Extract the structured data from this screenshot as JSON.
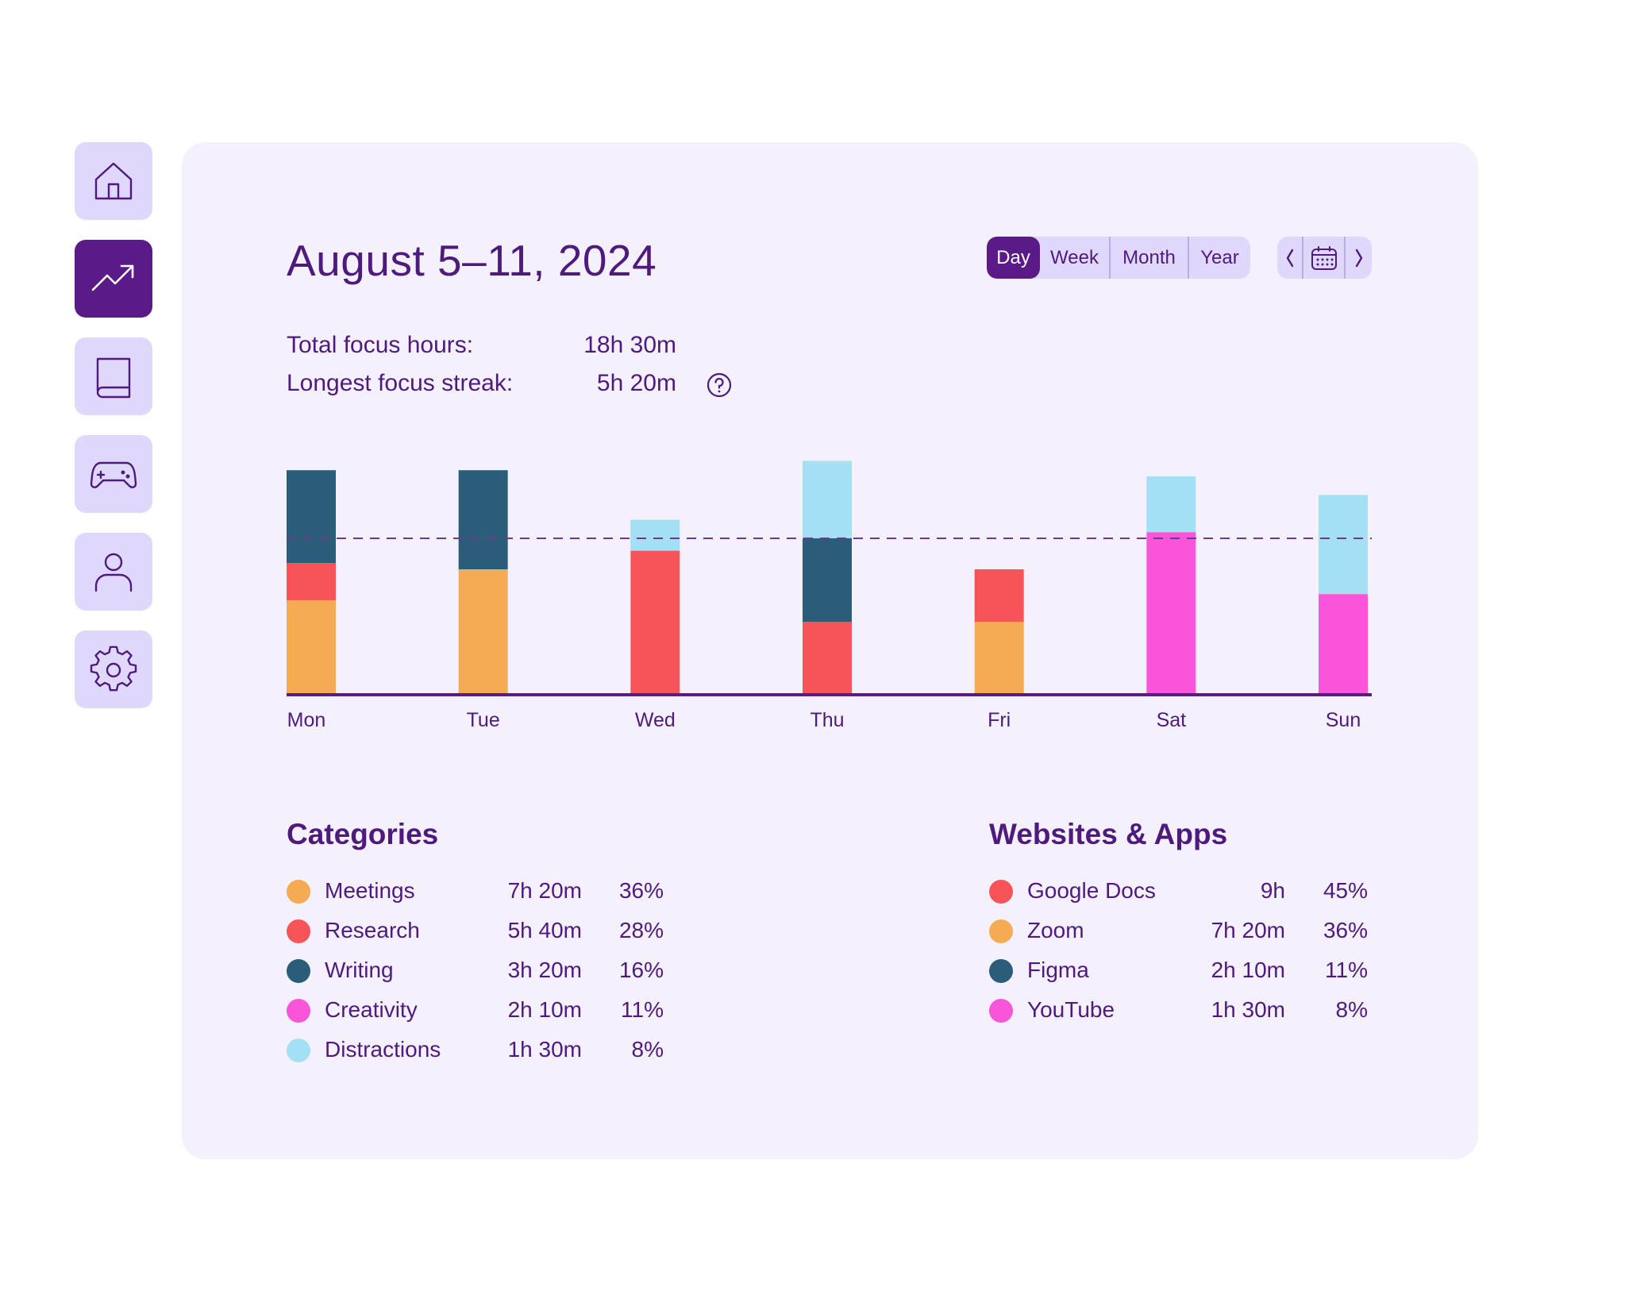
{
  "sidebar": {
    "items": [
      {
        "name": "home",
        "icon": "home-icon",
        "active": false
      },
      {
        "name": "stats",
        "icon": "trending-up-icon",
        "active": true
      },
      {
        "name": "library",
        "icon": "book-icon",
        "active": false
      },
      {
        "name": "games",
        "icon": "gamepad-icon",
        "active": false
      },
      {
        "name": "profile",
        "icon": "user-icon",
        "active": false
      },
      {
        "name": "settings",
        "icon": "gear-icon",
        "active": false
      }
    ]
  },
  "header": {
    "title": "August 5–11, 2024",
    "range_tabs": [
      {
        "label": "Day",
        "active": true
      },
      {
        "label": "Week",
        "active": false
      },
      {
        "label": "Month",
        "active": false
      },
      {
        "label": "Year",
        "active": false
      }
    ],
    "nav_icons": [
      "chevron-left-icon",
      "calendar-icon",
      "chevron-right-icon"
    ]
  },
  "stats": {
    "total_label": "Total focus hours:",
    "total_value": "18h 30m",
    "streak_label": "Longest focus streak:",
    "streak_value": "5h 20m"
  },
  "colors": {
    "Meetings": "#f5aa54",
    "Research": "#f65459",
    "Writing": "#295d79",
    "Creativity": "#f955d9",
    "Distractions": "#a4dff4",
    "accent": "#5a1a87",
    "text": "#4e1a7d"
  },
  "chart_data": {
    "type": "bar",
    "stacked": true,
    "categories": [
      "Mon",
      "Tue",
      "Wed",
      "Thu",
      "Fri",
      "Sat",
      "Sun"
    ],
    "series": [
      {
        "name": "Meetings",
        "values": [
          1.5,
          2.0,
          0,
          0,
          1.15,
          0,
          0
        ]
      },
      {
        "name": "Research",
        "values": [
          0.6,
          0,
          2.3,
          1.15,
          0.85,
          0,
          0
        ]
      },
      {
        "name": "Writing",
        "values": [
          1.5,
          1.6,
          0,
          1.35,
          0,
          0,
          0
        ]
      },
      {
        "name": "Creativity",
        "values": [
          0,
          0,
          0,
          0,
          0,
          2.6,
          1.6
        ]
      },
      {
        "name": "Distractions",
        "values": [
          0,
          0,
          0.5,
          1.25,
          0,
          0.9,
          1.6
        ]
      }
    ],
    "reference_line": 2.5,
    "ylim": [
      0,
      4
    ],
    "grid": false,
    "title": "",
    "xlabel": "",
    "ylabel": ""
  },
  "categories_section": {
    "title": "Categories",
    "items": [
      {
        "name": "Meetings",
        "time": "7h 20m",
        "pct": "36%",
        "color": "#f5aa54"
      },
      {
        "name": "Research",
        "time": "5h 40m",
        "pct": "28%",
        "color": "#f65459"
      },
      {
        "name": "Writing",
        "time": "3h 20m",
        "pct": "16%",
        "color": "#295d79"
      },
      {
        "name": "Creativity",
        "time": "2h 10m",
        "pct": "11%",
        "color": "#f955d9"
      },
      {
        "name": "Distractions",
        "time": "1h 30m",
        "pct": "8%",
        "color": "#a4dff4"
      }
    ]
  },
  "apps_section": {
    "title": "Websites & Apps",
    "items": [
      {
        "name": "Google Docs",
        "time": "9h",
        "pct": "45%",
        "color": "#f65459"
      },
      {
        "name": "Zoom",
        "time": "7h 20m",
        "pct": "36%",
        "color": "#f5aa54"
      },
      {
        "name": "Figma",
        "time": "2h 10m",
        "pct": "11%",
        "color": "#295d79"
      },
      {
        "name": "YouTube",
        "time": "1h 30m",
        "pct": "8%",
        "color": "#f955d9"
      }
    ]
  }
}
